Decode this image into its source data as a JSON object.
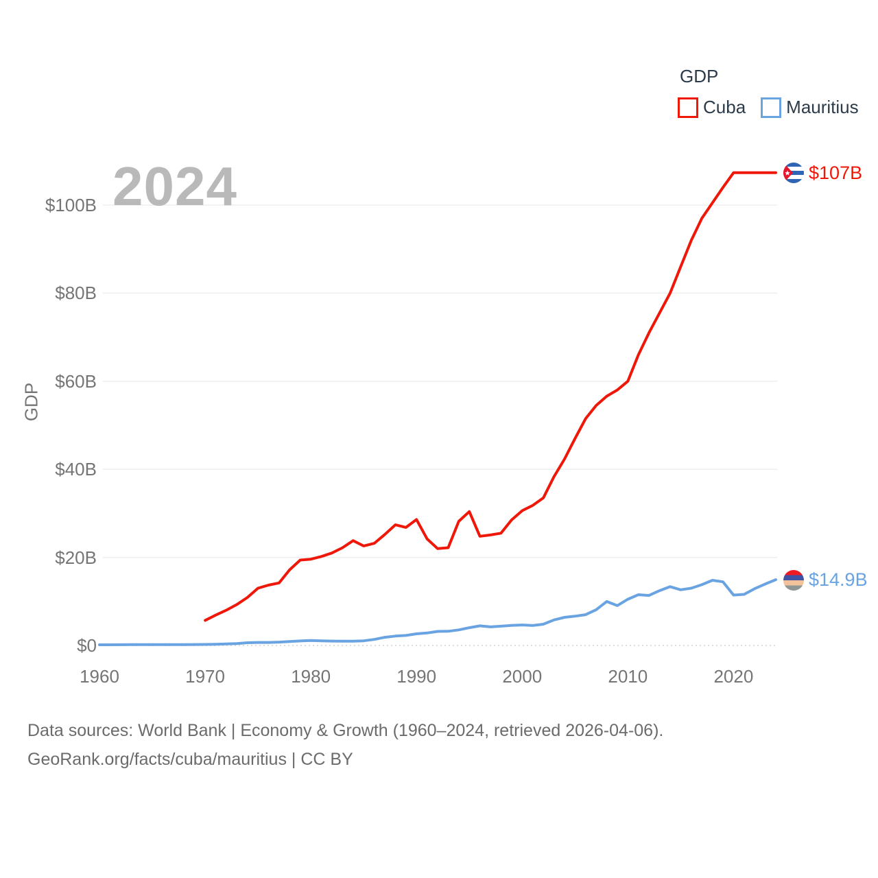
{
  "legend": {
    "title": "GDP",
    "items": [
      {
        "label": "Cuba",
        "color": "#ee1708"
      },
      {
        "label": "Mauritius",
        "color": "#69a3e1"
      }
    ]
  },
  "watermark": "2024",
  "chart_data": {
    "type": "line",
    "title": "GDP",
    "ylabel": "GDP",
    "xlabel": "",
    "xlim": [
      1960,
      2024
    ],
    "ylim": [
      0,
      110
    ],
    "grid": true,
    "legend_position": "top-right",
    "x_ticks": [
      {
        "label": "1960",
        "year": 1960
      },
      {
        "label": "1970",
        "year": 1970
      },
      {
        "label": "1980",
        "year": 1980
      },
      {
        "label": "1990",
        "year": 1990
      },
      {
        "label": "2000",
        "year": 2000
      },
      {
        "label": "2010",
        "year": 2010
      },
      {
        "label": "2020",
        "year": 2020
      }
    ],
    "y_ticks": [
      {
        "label": "$0",
        "value": 0
      },
      {
        "label": "$20B",
        "value": 20
      },
      {
        "label": "$40B",
        "value": 40
      },
      {
        "label": "$60B",
        "value": 60
      },
      {
        "label": "$80B",
        "value": 80
      },
      {
        "label": "$100B",
        "value": 100
      }
    ],
    "series": [
      {
        "name": "Cuba",
        "color": "#ee1708",
        "end_label": "$107B",
        "flag_icon": "cuba-flag-icon",
        "points": [
          [
            1970,
            5.7
          ],
          [
            1971,
            6.9
          ],
          [
            1972,
            8.0
          ],
          [
            1973,
            9.3
          ],
          [
            1974,
            10.9
          ],
          [
            1975,
            13.0
          ],
          [
            1976,
            13.7
          ],
          [
            1977,
            14.2
          ],
          [
            1978,
            17.2
          ],
          [
            1979,
            19.4
          ],
          [
            1980,
            19.6
          ],
          [
            1981,
            20.2
          ],
          [
            1982,
            21.0
          ],
          [
            1983,
            22.2
          ],
          [
            1984,
            23.8
          ],
          [
            1985,
            22.6
          ],
          [
            1986,
            23.2
          ],
          [
            1987,
            25.2
          ],
          [
            1988,
            27.4
          ],
          [
            1989,
            26.8
          ],
          [
            1990,
            28.6
          ],
          [
            1991,
            24.2
          ],
          [
            1992,
            22.0
          ],
          [
            1993,
            22.2
          ],
          [
            1994,
            28.2
          ],
          [
            1995,
            30.4
          ],
          [
            1996,
            24.8
          ],
          [
            1997,
            25.1
          ],
          [
            1998,
            25.5
          ],
          [
            1999,
            28.5
          ],
          [
            2000,
            30.6
          ],
          [
            2001,
            31.8
          ],
          [
            2002,
            33.5
          ],
          [
            2003,
            38.3
          ],
          [
            2004,
            42.3
          ],
          [
            2005,
            47.0
          ],
          [
            2006,
            51.5
          ],
          [
            2007,
            54.5
          ],
          [
            2008,
            56.6
          ],
          [
            2009,
            58.0
          ],
          [
            2010,
            60.0
          ],
          [
            2011,
            66.0
          ],
          [
            2012,
            71.0
          ],
          [
            2013,
            75.5
          ],
          [
            2014,
            80.0
          ],
          [
            2015,
            86.0
          ],
          [
            2016,
            92.0
          ],
          [
            2017,
            97.0
          ],
          [
            2018,
            100.5
          ],
          [
            2019,
            104.0
          ],
          [
            2020,
            107.35
          ],
          [
            2021,
            107.35
          ],
          [
            2022,
            107.35
          ],
          [
            2023,
            107.35
          ],
          [
            2024,
            107.35
          ]
        ]
      },
      {
        "name": "Mauritius",
        "color": "#69a3e1",
        "end_label": "$14.9B",
        "flag_icon": "mauritius-flag-icon",
        "points": [
          [
            1960,
            0.15
          ],
          [
            1961,
            0.16
          ],
          [
            1962,
            0.17
          ],
          [
            1963,
            0.18
          ],
          [
            1964,
            0.19
          ],
          [
            1965,
            0.2
          ],
          [
            1966,
            0.2
          ],
          [
            1967,
            0.21
          ],
          [
            1968,
            0.21
          ],
          [
            1969,
            0.22
          ],
          [
            1970,
            0.24
          ],
          [
            1971,
            0.27
          ],
          [
            1972,
            0.34
          ],
          [
            1973,
            0.44
          ],
          [
            1974,
            0.62
          ],
          [
            1975,
            0.68
          ],
          [
            1976,
            0.68
          ],
          [
            1977,
            0.76
          ],
          [
            1978,
            0.9
          ],
          [
            1979,
            1.03
          ],
          [
            1980,
            1.13
          ],
          [
            1981,
            1.06
          ],
          [
            1982,
            1.0
          ],
          [
            1983,
            0.97
          ],
          [
            1984,
            0.96
          ],
          [
            1985,
            1.06
          ],
          [
            1986,
            1.37
          ],
          [
            1987,
            1.85
          ],
          [
            1988,
            2.13
          ],
          [
            1989,
            2.28
          ],
          [
            1990,
            2.65
          ],
          [
            1991,
            2.83
          ],
          [
            1992,
            3.2
          ],
          [
            1993,
            3.23
          ],
          [
            1994,
            3.54
          ],
          [
            1995,
            4.04
          ],
          [
            1996,
            4.45
          ],
          [
            1997,
            4.22
          ],
          [
            1998,
            4.37
          ],
          [
            1999,
            4.55
          ],
          [
            2000,
            4.66
          ],
          [
            2001,
            4.54
          ],
          [
            2002,
            4.83
          ],
          [
            2003,
            5.79
          ],
          [
            2004,
            6.39
          ],
          [
            2005,
            6.65
          ],
          [
            2006,
            7.0
          ],
          [
            2007,
            8.11
          ],
          [
            2008,
            9.99
          ],
          [
            2009,
            9.05
          ],
          [
            2010,
            10.5
          ],
          [
            2011,
            11.52
          ],
          [
            2012,
            11.35
          ],
          [
            2013,
            12.45
          ],
          [
            2014,
            13.35
          ],
          [
            2015,
            12.65
          ],
          [
            2016,
            13.0
          ],
          [
            2017,
            13.8
          ],
          [
            2018,
            14.8
          ],
          [
            2019,
            14.45
          ],
          [
            2020,
            11.45
          ],
          [
            2021,
            11.6
          ],
          [
            2022,
            12.9
          ],
          [
            2023,
            13.95
          ],
          [
            2024,
            14.93
          ]
        ]
      }
    ]
  },
  "footer": {
    "line1": "Data sources: World Bank | Economy & Growth (1960–2024, retrieved 2026-04-06).",
    "line2": "GeoRank.org/facts/cuba/mauritius | CC BY"
  }
}
